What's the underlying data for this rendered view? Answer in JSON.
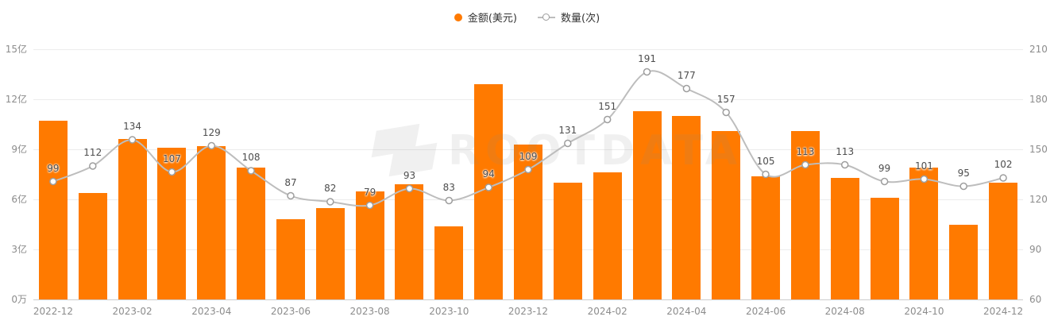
{
  "legend": {
    "amount": "金额(美元)",
    "count": "数量(次)"
  },
  "colors": {
    "bar": "#FF7A00",
    "line": "#BDBDBD",
    "marker_border": "#9E9E9E",
    "marker_fill": "#FFFFFF",
    "point_label": "#4D4D4D",
    "axis_label": "#8C8C8C",
    "grid": "#ECECEC",
    "axis_line": "#CCCCCC"
  },
  "watermark": "ROOTDATA",
  "chart_data": {
    "type": "combo-bar-line",
    "title": "",
    "categories": [
      "2022-12",
      "2023-01",
      "2023-02",
      "2023-03",
      "2023-04",
      "2023-05",
      "2023-06",
      "2023-07",
      "2023-08",
      "2023-09",
      "2023-10",
      "2023-11",
      "2023-12",
      "2024-01",
      "2024-02",
      "2024-03",
      "2024-04",
      "2024-05",
      "2024-06",
      "2024-07",
      "2024-08",
      "2024-09",
      "2024-10",
      "2024-11",
      "2024-12"
    ],
    "x_tick_labels": [
      "2022-12",
      "2023-02",
      "2023-04",
      "2023-06",
      "2023-08",
      "2023-10",
      "2023-12",
      "2024-02",
      "2024-04",
      "2024-06",
      "2024-08",
      "2024-10",
      "2024-12"
    ],
    "series": [
      {
        "name": "金额(美元)",
        "type": "bar",
        "axis": "left",
        "unit": "亿",
        "values": [
          10.7,
          6.4,
          9.6,
          9.1,
          9.2,
          7.9,
          4.8,
          5.5,
          6.5,
          6.9,
          4.4,
          12.9,
          9.3,
          7.0,
          7.6,
          11.3,
          11.0,
          10.1,
          7.4,
          10.1,
          7.3,
          6.1,
          7.9,
          4.5,
          7.0
        ]
      },
      {
        "name": "数量(次)",
        "type": "line",
        "axis": "right",
        "values": [
          99,
          112,
          134,
          107,
          129,
          108,
          87,
          82,
          79,
          93,
          83,
          94,
          109,
          131,
          151,
          191,
          177,
          157,
          105,
          113,
          113,
          99,
          101,
          95,
          102
        ]
      }
    ],
    "left_axis": {
      "min": 0,
      "max": 15,
      "tick_values": [
        0,
        3,
        6,
        9,
        12,
        15
      ],
      "ticks": [
        "0万",
        "3亿",
        "6亿",
        "9亿",
        "12亿",
        "15亿"
      ]
    },
    "right_axis": {
      "plot_min": 0,
      "plot_max": 210,
      "ticks": [
        "60",
        "90",
        "120",
        "150",
        "180",
        "210"
      ]
    },
    "grid": true,
    "legend_position": "top-center"
  }
}
